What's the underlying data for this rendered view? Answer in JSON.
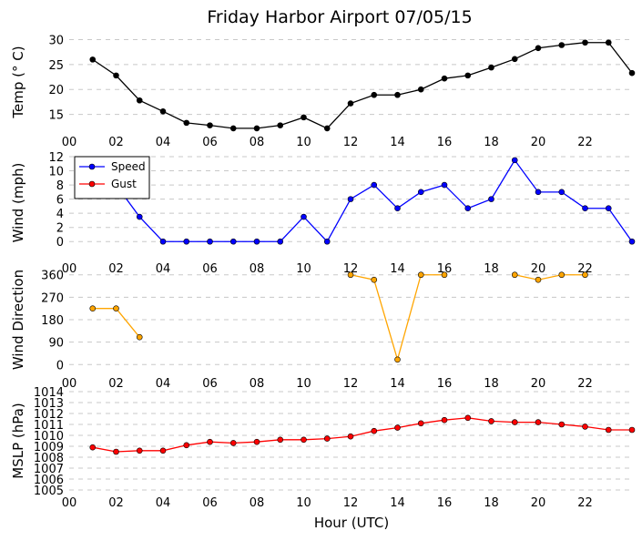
{
  "chart_data": {
    "title": "Friday Harbor Airport 07/05/15",
    "type": "line",
    "xlabel": "Hour (UTC)",
    "xlim": [
      0,
      24
    ],
    "xticks": [
      0,
      2,
      4,
      6,
      8,
      10,
      12,
      14,
      16,
      18,
      20,
      22
    ],
    "xtick_labels": [
      "00",
      "02",
      "04",
      "06",
      "08",
      "10",
      "12",
      "14",
      "16",
      "18",
      "20",
      "22"
    ],
    "panels": [
      {
        "ylabel": "Temp ($^\\circ$C)",
        "ylabel_text": "Temp (° C)",
        "ylim": [
          12,
          31
        ],
        "yticks": [
          15,
          20,
          25,
          30
        ],
        "grid": true,
        "series": [
          {
            "color": "#000000",
            "x": [
              1,
              2,
              3,
              4,
              5,
              6,
              7,
              8,
              9,
              10,
              11,
              12,
              13,
              14,
              15,
              16,
              17,
              18,
              19,
              20,
              21,
              22,
              23,
              24
            ],
            "y": [
              26.0,
              22.8,
              17.8,
              15.6,
              13.3,
              12.8,
              12.2,
              12.2,
              12.8,
              14.4,
              12.2,
              17.2,
              18.9,
              18.9,
              20.0,
              22.2,
              22.8,
              24.4,
              26.1,
              28.3,
              28.9,
              29.4,
              29.4,
              23.3
            ]
          }
        ]
      },
      {
        "ylabel": "Wind (mph)",
        "ylim": [
          -1,
          12
        ],
        "yticks": [
          0,
          2,
          4,
          6,
          8,
          10,
          12
        ],
        "grid": true,
        "legend": "top-left",
        "series": [
          {
            "name": "Speed",
            "color": "#0000ff",
            "x": [
              1,
              2,
              3,
              4,
              5,
              6,
              7,
              8,
              9,
              10,
              11,
              12,
              13,
              14,
              15,
              16,
              17,
              18,
              19,
              20,
              21,
              22,
              23,
              24
            ],
            "y": [
              7,
              8,
              3.5,
              0,
              0,
              0,
              0,
              0,
              0,
              3.5,
              0,
              6,
              8,
              4.7,
              7,
              8,
              4.7,
              6,
              11.5,
              7,
              7,
              4.7,
              4.7,
              0
            ]
          },
          {
            "name": "Gust",
            "color": "#ff0000",
            "x": [],
            "y": []
          }
        ]
      },
      {
        "ylabel": "Wind Direction",
        "ylim": [
          -10,
          370
        ],
        "yticks": [
          0,
          90,
          180,
          270,
          360
        ],
        "grid": true,
        "series": [
          {
            "color": "#ffa500",
            "segments": [
              {
                "x": [
                  1,
                  2,
                  3
                ],
                "y": [
                  225,
                  225,
                  110
                ]
              },
              {
                "x": [
                  12,
                  13,
                  14,
                  15,
                  16
                ],
                "y": [
                  360,
                  340,
                  20,
                  360,
                  360
                ]
              },
              {
                "x": [
                  19,
                  20,
                  21,
                  22
                ],
                "y": [
                  360,
                  340,
                  360,
                  360
                ]
              }
            ]
          }
        ]
      },
      {
        "ylabel": "MSLP (hPa)",
        "ylim": [
          1005,
          1014
        ],
        "yticks": [
          1005,
          1006,
          1007,
          1008,
          1009,
          1010,
          1011,
          1012,
          1013,
          1014
        ],
        "grid": true,
        "series": [
          {
            "color": "#ff0000",
            "x": [
              1,
              2,
              3,
              4,
              5,
              6,
              7,
              8,
              9,
              10,
              11,
              12,
              13,
              14,
              15,
              16,
              17,
              18,
              19,
              20,
              21,
              22,
              23,
              24
            ],
            "y": [
              1008.9,
              1008.5,
              1008.6,
              1008.6,
              1009.1,
              1009.4,
              1009.3,
              1009.4,
              1009.6,
              1009.6,
              1009.7,
              1009.9,
              1010.4,
              1010.7,
              1011.1,
              1011.4,
              1011.6,
              1011.3,
              1011.2,
              1011.2,
              1011.0,
              1010.8,
              1010.5,
              1010.5
            ]
          }
        ]
      }
    ]
  }
}
